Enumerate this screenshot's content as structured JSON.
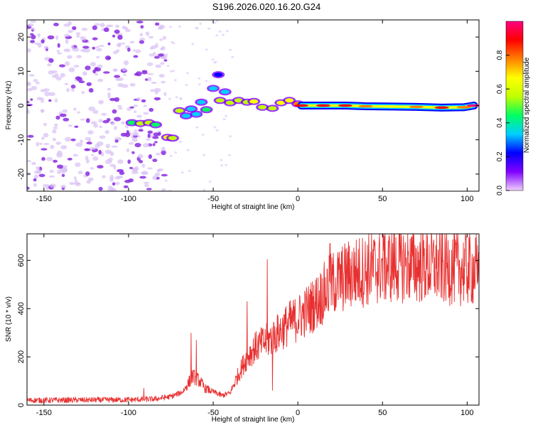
{
  "title": "S196.2026.020.16.20.G24",
  "chart_data": [
    {
      "type": "heatmap",
      "xlabel": "Height of straight line (km)",
      "ylabel": "Frequency (Hz)",
      "xlim": [
        -160,
        107
      ],
      "ylim": [
        -25,
        25
      ],
      "xticks": [
        -150,
        -100,
        -50,
        0,
        50,
        100
      ],
      "yticks": [
        -20,
        -10,
        0,
        10,
        20
      ],
      "colorbar": {
        "label": "Normalized spectral amplitude",
        "range": [
          0,
          1
        ],
        "ticks": [
          0.0,
          0.2,
          0.4,
          0.6,
          0.8
        ],
        "colors": [
          "#f0d0ff",
          "#8000ff",
          "#0000ff",
          "#00d0ff",
          "#00ff60",
          "#c0ff00",
          "#ffff00",
          "#ff8000",
          "#ff0000",
          "#ff0080"
        ]
      },
      "noise_region_x": [
        -160,
        -78
      ],
      "blobs": [
        {
          "x": -98,
          "y": -5.0,
          "v": 0.45
        },
        {
          "x": -93,
          "y": -5.2,
          "v": 0.55
        },
        {
          "x": -88,
          "y": -5.0,
          "v": 0.5
        },
        {
          "x": -84,
          "y": -5.6,
          "v": 0.4
        },
        {
          "x": -77,
          "y": -9.3,
          "v": 0.65
        },
        {
          "x": -74,
          "y": -9.5,
          "v": 0.55
        },
        {
          "x": -70,
          "y": -1.5,
          "v": 0.5
        },
        {
          "x": -66,
          "y": -3.0,
          "v": 0.35
        },
        {
          "x": -63,
          "y": -1.0,
          "v": 0.3
        },
        {
          "x": -60,
          "y": -2.5,
          "v": 0.35
        },
        {
          "x": -57,
          "y": 1.0,
          "v": 0.3
        },
        {
          "x": -54,
          "y": -1.2,
          "v": 0.4
        },
        {
          "x": -50,
          "y": 5.0,
          "v": 0.3
        },
        {
          "x": -47,
          "y": 9.0,
          "v": 0.25
        },
        {
          "x": -46,
          "y": 1.5,
          "v": 0.5
        },
        {
          "x": -43,
          "y": 4.0,
          "v": 0.35
        },
        {
          "x": -40,
          "y": 0.8,
          "v": 0.5
        },
        {
          "x": -35,
          "y": 1.5,
          "v": 0.55
        },
        {
          "x": -30,
          "y": 1.0,
          "v": 0.6
        },
        {
          "x": -26,
          "y": 1.2,
          "v": 0.65
        },
        {
          "x": -21,
          "y": -0.5,
          "v": 0.5
        },
        {
          "x": -15,
          "y": -0.8,
          "v": 0.55
        },
        {
          "x": -10,
          "y": 0.8,
          "v": 0.65
        },
        {
          "x": -5,
          "y": 1.5,
          "v": 0.7
        },
        {
          "x": 0,
          "y": 0.5,
          "v": 0.75
        }
      ],
      "ridge": [
        {
          "x": 2,
          "y": 0.0,
          "v": 0.9
        },
        {
          "x": 15,
          "y": 0.0,
          "v": 0.9
        },
        {
          "x": 28,
          "y": 0.0,
          "v": 0.85
        },
        {
          "x": 40,
          "y": -0.2,
          "v": 0.75
        },
        {
          "x": 55,
          "y": -0.3,
          "v": 0.7
        },
        {
          "x": 70,
          "y": -0.4,
          "v": 0.75
        },
        {
          "x": 85,
          "y": -0.6,
          "v": 0.85
        },
        {
          "x": 98,
          "y": -0.5,
          "v": 0.8
        },
        {
          "x": 104,
          "y": 0.0,
          "v": 0.95
        }
      ]
    },
    {
      "type": "line",
      "xlabel": "Height of straight line (km)",
      "ylabel": "SNR (10 * v/v)",
      "xlim": [
        -160,
        107
      ],
      "ylim": [
        0,
        710
      ],
      "xticks": [
        -150,
        -100,
        -50,
        0,
        50,
        100
      ],
      "yticks": [
        0,
        200,
        400,
        600
      ],
      "color": "#e83030",
      "trend": [
        {
          "x": -160,
          "y": 20
        },
        {
          "x": -100,
          "y": 22
        },
        {
          "x": -85,
          "y": 25
        },
        {
          "x": -75,
          "y": 35
        },
        {
          "x": -68,
          "y": 55
        },
        {
          "x": -62,
          "y": 120
        },
        {
          "x": -58,
          "y": 100
        },
        {
          "x": -55,
          "y": 70
        },
        {
          "x": -50,
          "y": 55
        },
        {
          "x": -45,
          "y": 40
        },
        {
          "x": -40,
          "y": 50
        },
        {
          "x": -35,
          "y": 130
        },
        {
          "x": -30,
          "y": 200
        },
        {
          "x": -25,
          "y": 240
        },
        {
          "x": -20,
          "y": 260
        },
        {
          "x": -15,
          "y": 280
        },
        {
          "x": -10,
          "y": 310
        },
        {
          "x": -5,
          "y": 340
        },
        {
          "x": 0,
          "y": 360
        },
        {
          "x": 5,
          "y": 390
        },
        {
          "x": 10,
          "y": 420
        },
        {
          "x": 15,
          "y": 460
        },
        {
          "x": 20,
          "y": 500
        },
        {
          "x": 30,
          "y": 540
        },
        {
          "x": 40,
          "y": 560
        },
        {
          "x": 50,
          "y": 575
        },
        {
          "x": 60,
          "y": 585
        },
        {
          "x": 70,
          "y": 580
        },
        {
          "x": 80,
          "y": 575
        },
        {
          "x": 90,
          "y": 570
        },
        {
          "x": 100,
          "y": 565
        },
        {
          "x": 107,
          "y": 560
        }
      ],
      "spikes": [
        {
          "x": -91,
          "y": 70
        },
        {
          "x": -63,
          "y": 300
        },
        {
          "x": -60,
          "y": 270
        },
        {
          "x": -30,
          "y": 430
        },
        {
          "x": -18,
          "y": 605
        },
        {
          "x": -15,
          "y": 60
        },
        {
          "x": 19,
          "y": 670
        },
        {
          "x": 51,
          "y": 700
        },
        {
          "x": 61,
          "y": 710
        },
        {
          "x": 106,
          "y": 500
        }
      ]
    }
  ]
}
